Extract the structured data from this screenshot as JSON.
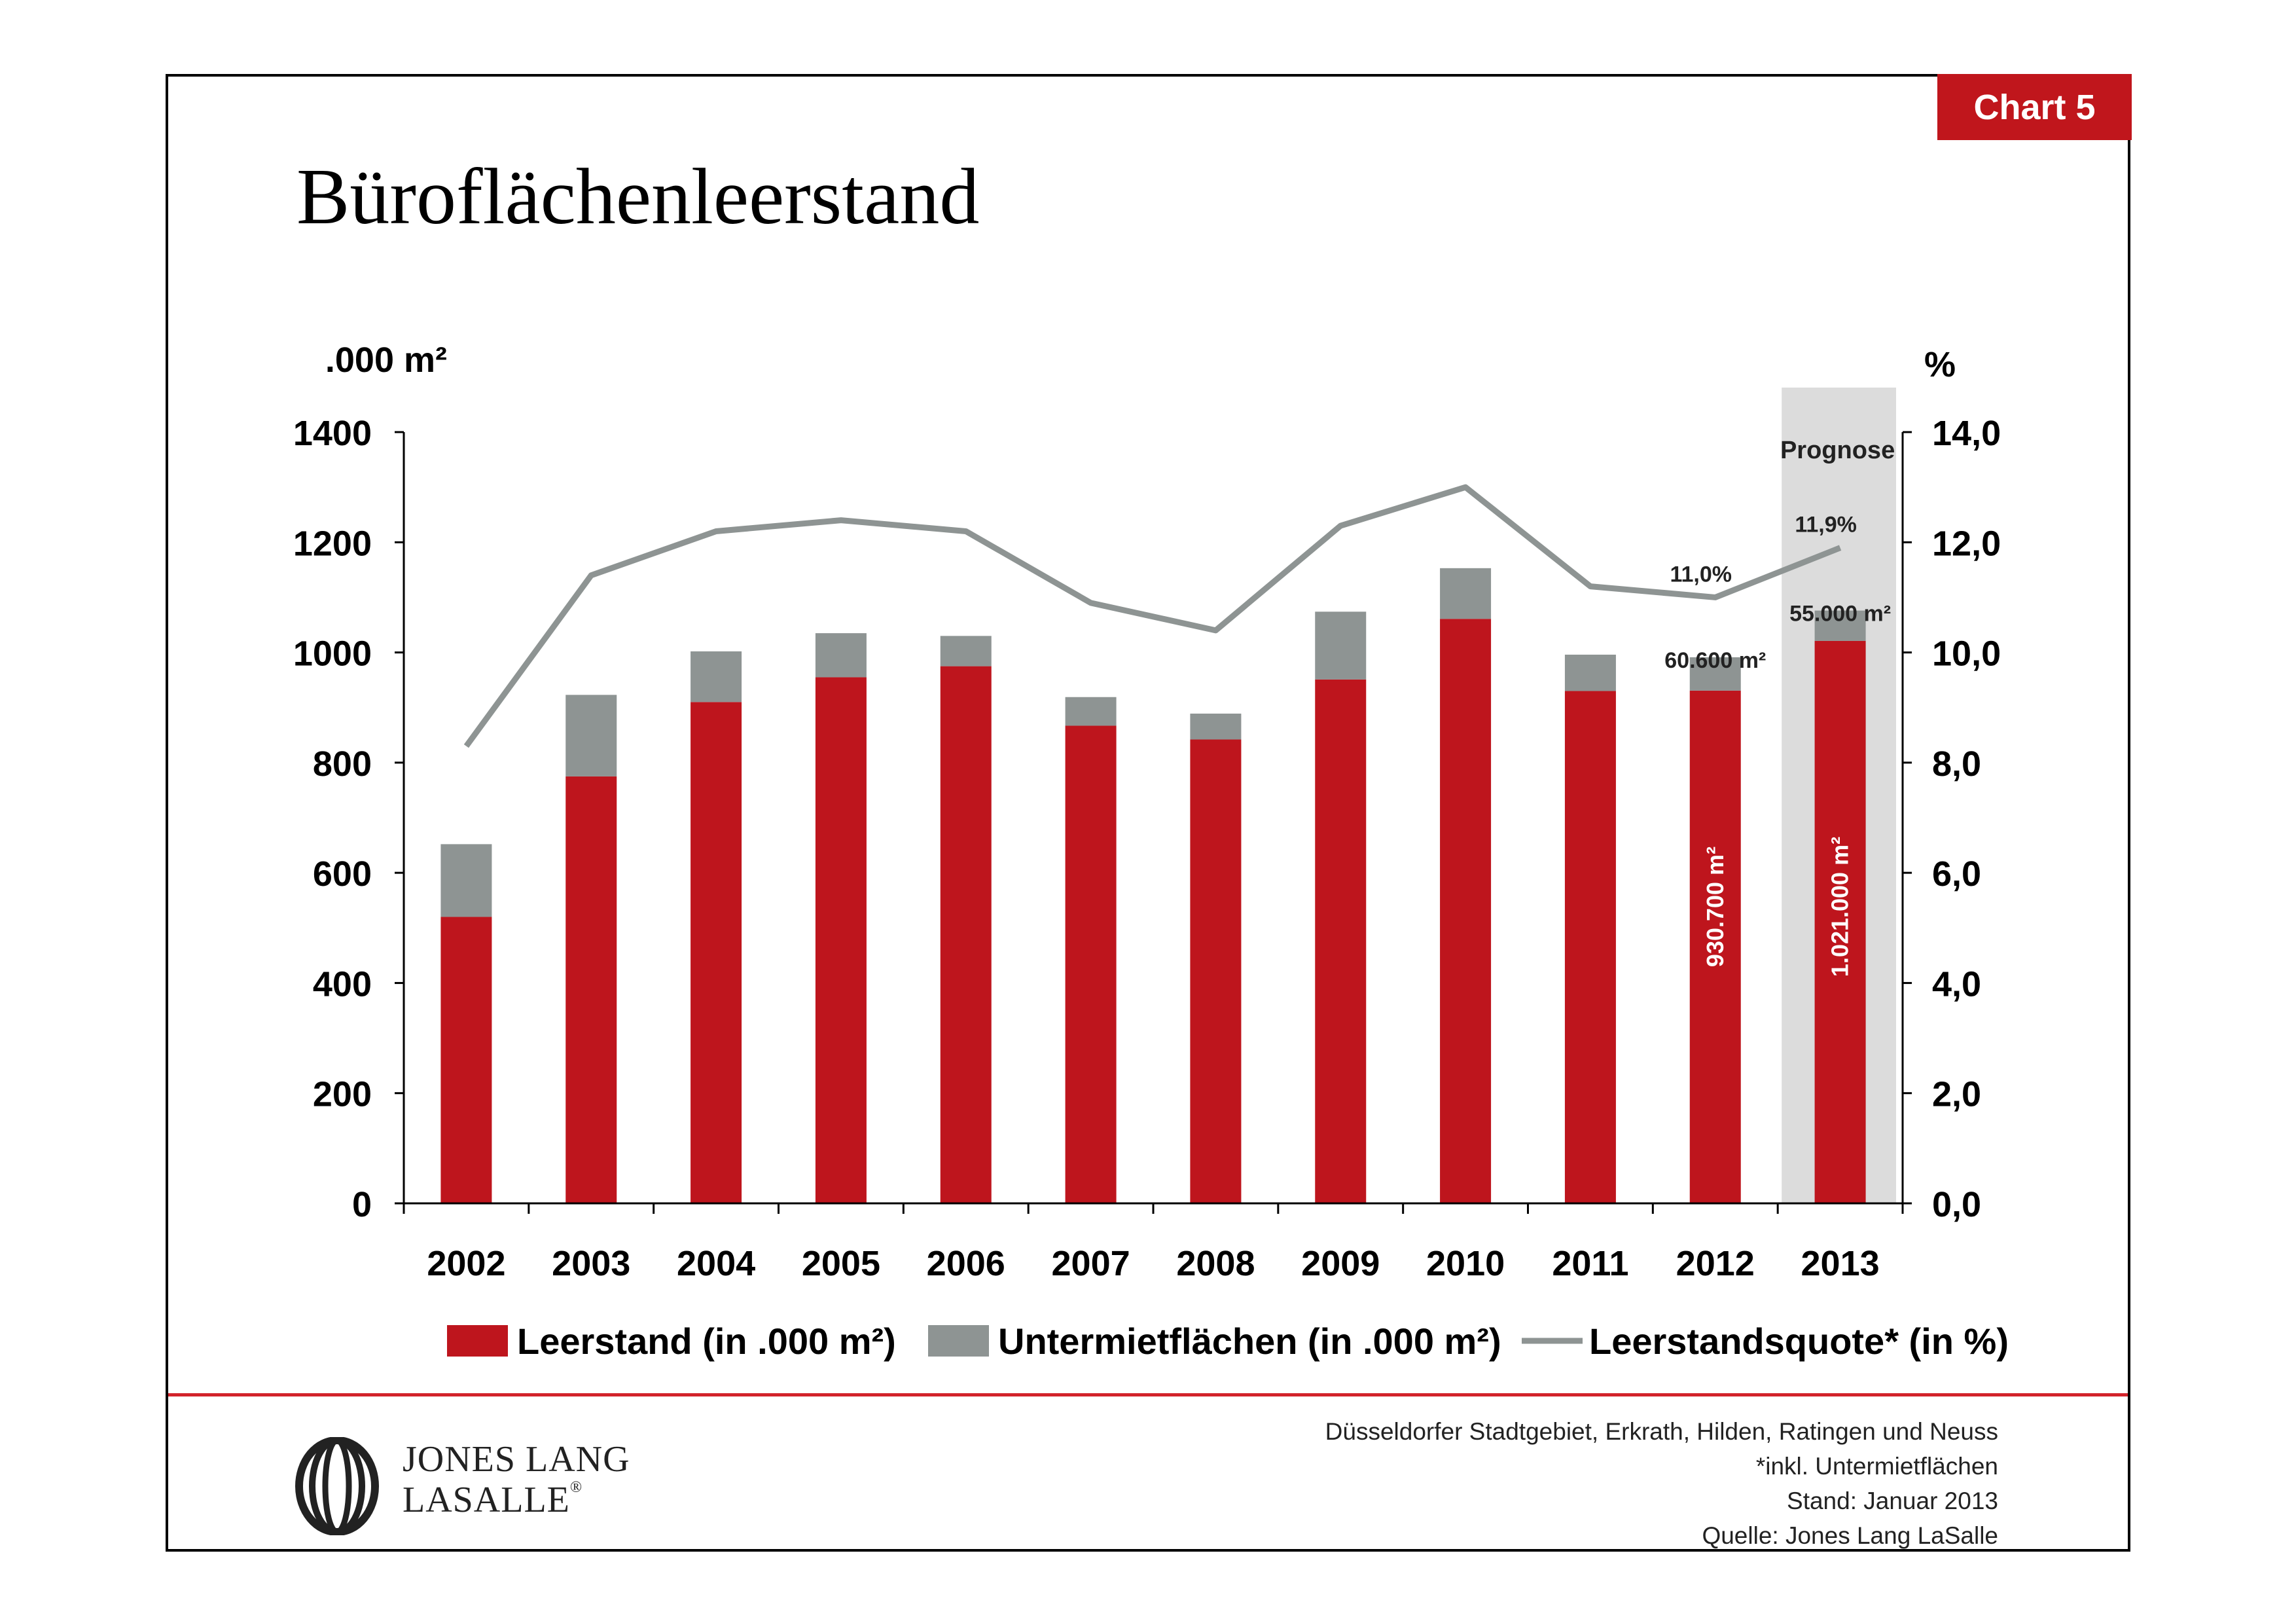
{
  "badge": "Chart  5",
  "title": "Büroflächenleerstand",
  "chart_data": {
    "type": "bar",
    "stacked": true,
    "categories": [
      "2002",
      "2003",
      "2004",
      "2005",
      "2006",
      "2007",
      "2008",
      "2009",
      "2010",
      "2011",
      "2012",
      "2013"
    ],
    "series": [
      {
        "name": "Leerstand (in .000 m²)",
        "type": "bar",
        "axis": "left",
        "color": "#be151d",
        "values": [
          520,
          775,
          910,
          955,
          975,
          867,
          842,
          951,
          1061,
          930,
          930.7,
          1021
        ]
      },
      {
        "name": "Untermietflächen (in .000 m²)",
        "type": "bar",
        "axis": "left",
        "color": "#8e9493",
        "values": [
          132,
          148,
          92,
          80,
          55,
          52,
          47,
          123,
          92,
          66,
          60.6,
          55
        ]
      },
      {
        "name": "Leerstandsquote* (in %)",
        "type": "line",
        "axis": "right",
        "color": "#8e9493",
        "values": [
          8.3,
          11.4,
          12.2,
          12.4,
          12.2,
          10.9,
          10.4,
          12.3,
          13.0,
          11.2,
          11.0,
          11.9
        ]
      }
    ],
    "y_left": {
      "label": ".000 m²",
      "range": [
        0,
        1400
      ],
      "ticks": [
        {
          "v": 0,
          "t": "0"
        },
        {
          "v": 200,
          "t": "200"
        },
        {
          "v": 400,
          "t": "400"
        },
        {
          "v": 600,
          "t": "600"
        },
        {
          "v": 800,
          "t": "800"
        },
        {
          "v": 1000,
          "t": "1000"
        },
        {
          "v": 1200,
          "t": "1200"
        },
        {
          "v": 1400,
          "t": "1400"
        }
      ]
    },
    "y_right": {
      "label": "%",
      "range": [
        0,
        14
      ],
      "ticks": [
        {
          "v": 0,
          "t": "0,0"
        },
        {
          "v": 2,
          "t": "2,0"
        },
        {
          "v": 4,
          "t": "4,0"
        },
        {
          "v": 6,
          "t": "6,0"
        },
        {
          "v": 8,
          "t": "8,0"
        },
        {
          "v": 10,
          "t": "10,0"
        },
        {
          "v": 12,
          "t": "12,0"
        },
        {
          "v": 14,
          "t": "14,0"
        }
      ]
    },
    "forecast": {
      "category": "2013",
      "label": "Prognose",
      "color": "#dcdcdc"
    },
    "annotations": [
      {
        "category": "2012",
        "value": 11.0,
        "axis": "right",
        "text": "11,0%"
      },
      {
        "category": "2013",
        "value": 11.9,
        "axis": "right",
        "text": "11,9%"
      },
      {
        "category": "2012",
        "value": 991.3,
        "axis": "left",
        "text": "60.600 m²"
      },
      {
        "category": "2013",
        "value": 1076,
        "axis": "left",
        "text": "55.000 m²"
      }
    ],
    "bar_labels": [
      {
        "category": "2012",
        "value": 930.7,
        "text": "930.700 m²"
      },
      {
        "category": "2013",
        "value": 1021,
        "text": "1.021.000 m²"
      }
    ],
    "legend": {
      "position": "bottom"
    },
    "grid": false
  },
  "footer": {
    "logo": {
      "line1": "JONES LANG",
      "line2": "LASALLE",
      "mark": "®"
    },
    "notes": [
      "Düsseldorfer Stadtgebiet, Erkrath, Hilden, Ratingen und Neuss",
      "*inkl. Untermietflächen",
      "Stand: Januar 2013",
      "Quelle: Jones Lang LaSalle"
    ]
  }
}
